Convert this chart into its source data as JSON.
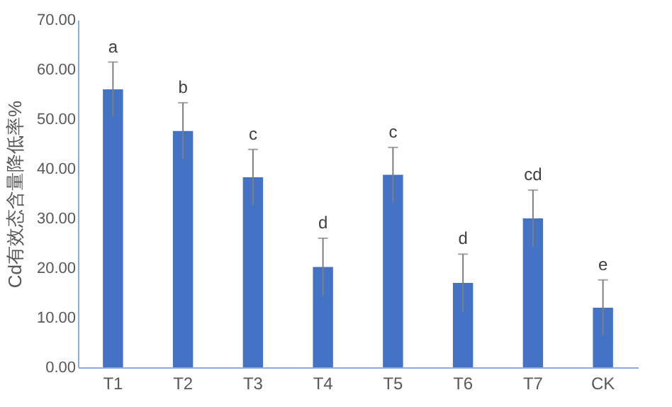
{
  "chart_data": {
    "type": "bar",
    "ylabel": "Cd有效态含量降低率%",
    "categories": [
      "T1",
      "T2",
      "T3",
      "T4",
      "T5",
      "T6",
      "T7",
      "CK"
    ],
    "values": [
      56.0,
      47.6,
      38.3,
      20.2,
      38.8,
      17.0,
      30.0,
      12.0
    ],
    "errors": [
      5.5,
      5.7,
      5.6,
      5.8,
      5.5,
      5.8,
      5.7,
      5.6
    ],
    "color": "#4472c4",
    "ylim": [
      0,
      70
    ],
    "yticks": [
      {
        "value": 0,
        "label": "0.00"
      },
      {
        "value": 10,
        "label": "10.00"
      },
      {
        "value": 20,
        "label": "20.00"
      },
      {
        "value": 30,
        "label": "30.00"
      },
      {
        "value": 40,
        "label": "40.00"
      },
      {
        "value": 50,
        "label": "50.00"
      },
      {
        "value": 60,
        "label": "60.00"
      },
      {
        "value": 70,
        "label": "70.00"
      }
    ],
    "annotations": [
      {
        "text": "a",
        "x": "T1",
        "y": 61.5
      },
      {
        "text": "b",
        "x": "T2",
        "y": 53.3
      },
      {
        "text": "c",
        "x": "T3",
        "y": 43.9
      },
      {
        "text": "d",
        "x": "T4",
        "y": 26.0
      },
      {
        "text": "c",
        "x": "T5",
        "y": 44.3
      },
      {
        "text": "d",
        "x": "T6",
        "y": 22.8
      },
      {
        "text": "cd",
        "x": "T7",
        "y": 35.7
      },
      {
        "text": "e",
        "x": "CK",
        "y": 17.6
      }
    ],
    "grid": false
  }
}
